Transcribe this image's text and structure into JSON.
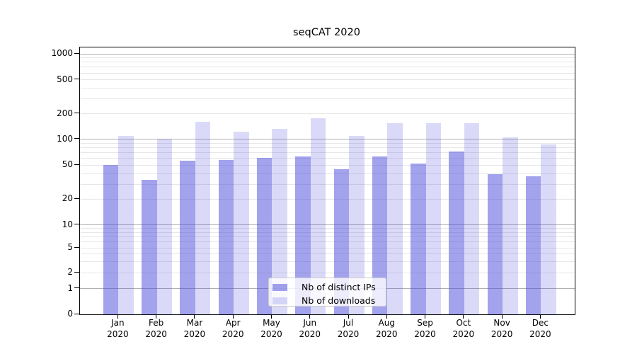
{
  "page": {
    "background": "#ffffff"
  },
  "chart_data": {
    "type": "bar",
    "title": "seqCAT 2020",
    "categories": [
      "Jan",
      "Feb",
      "Mar",
      "Apr",
      "May",
      "Jun",
      "Jul",
      "Aug",
      "Sep",
      "Oct",
      "Nov",
      "Dec"
    ],
    "category_year": "2020",
    "series": [
      {
        "name": "Nb of distinct IPs",
        "values": [
          50,
          34,
          56,
          58,
          61,
          63,
          45,
          63,
          52,
          73,
          39,
          37
        ]
      },
      {
        "name": "Nb of downloads",
        "values": [
          110,
          101,
          160,
          123,
          134,
          178,
          110,
          155,
          155,
          154,
          106,
          87
        ]
      }
    ],
    "yscale": "symlog",
    "y_ticks": [
      0,
      1,
      2,
      5,
      10,
      20,
      50,
      100,
      200,
      500,
      1000
    ],
    "y_minor_ticks": [
      3,
      4,
      6,
      7,
      8,
      9,
      30,
      40,
      60,
      70,
      80,
      90,
      300,
      400,
      600,
      700,
      800,
      900
    ],
    "ylim": [
      0,
      1400
    ],
    "xlabel": "",
    "ylabel": "",
    "grid": true,
    "legend_position": "lower center"
  },
  "legend": {
    "items": [
      {
        "label": "Nb of distinct IPs"
      },
      {
        "label": "Nb of downloads"
      }
    ]
  },
  "colors": {
    "bar_distinct_ips": "rgba(70,70,220,0.5)",
    "bar_downloads": "rgba(70,70,220,0.2)",
    "grid_major": "#b0b0b0",
    "grid_minor": "#e7e7e7",
    "spine": "#000000",
    "text": "#000000"
  }
}
